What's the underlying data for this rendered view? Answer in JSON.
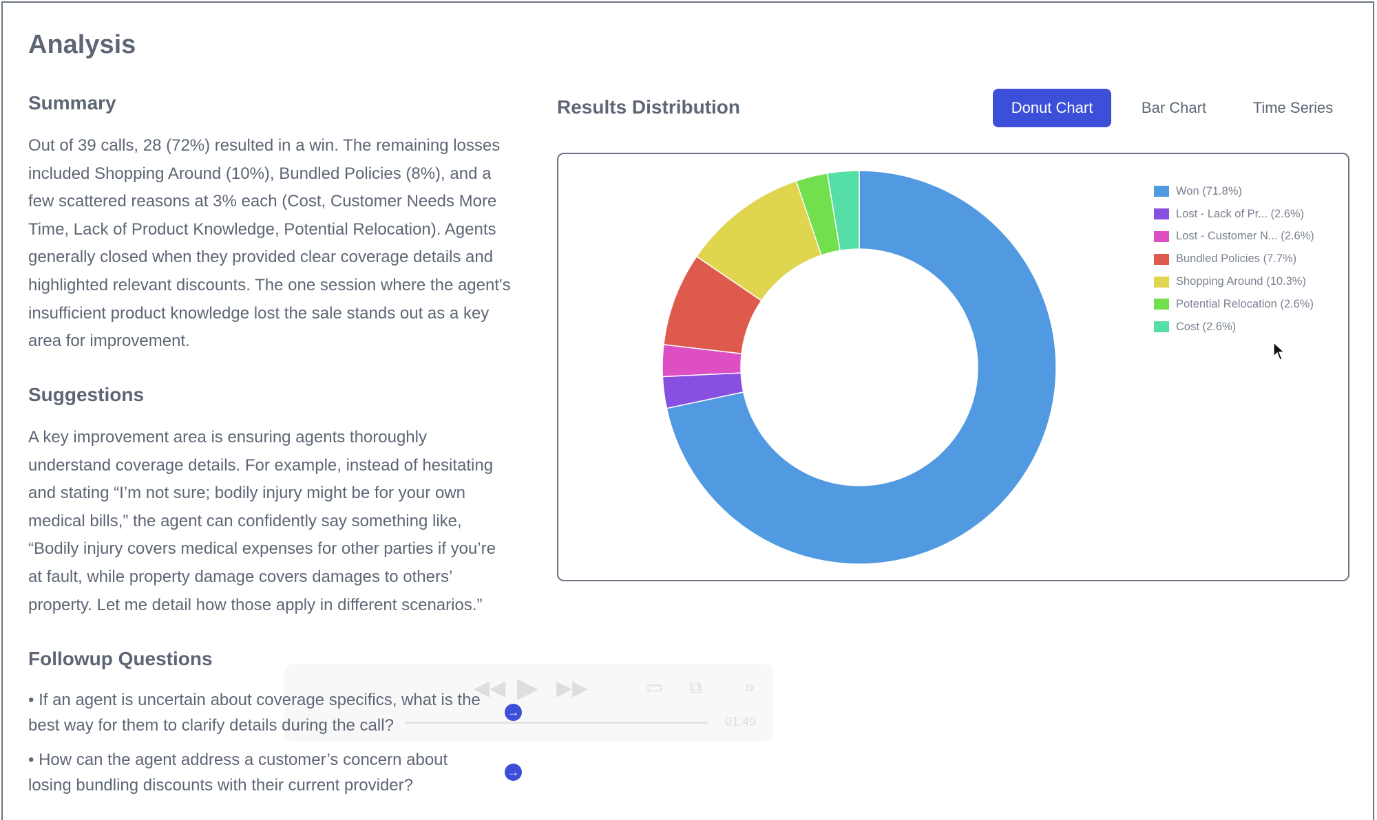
{
  "page": {
    "title": "Analysis"
  },
  "summary": {
    "heading": "Summary",
    "lines": [
      "Out of 39 calls, 28 (72%) resulted in a win. The remaining losses",
      "included Shopping Around (10%), Bundled Policies (8%), and a",
      "few scattered reasons at 3% each (Cost, Customer Needs More",
      "Time, Lack of Product Knowledge, Potential Relocation). Agents",
      "generally closed when they provided clear coverage details and",
      "highlighted relevant discounts. The one session where the agent's",
      "insufficient product knowledge lost the sale stands out as a key",
      "area for improvement."
    ]
  },
  "suggestions": {
    "heading": "Suggestions",
    "lines": [
      "A key improvement area is ensuring agents thoroughly",
      "understand coverage details. For example, instead of hesitating",
      "and stating “I’m not sure; bodily injury might be for your own",
      "medical bills,” the agent can confidently say something like,",
      "“Bodily injury covers medical expenses for other parties if you’re",
      "at fault, while property damage covers damages to others’",
      "property. Let me detail how those apply in different scenarios.”"
    ]
  },
  "followup": {
    "heading": "Followup Questions",
    "items": [
      {
        "line1": "• If an agent is uncertain about coverage specifics, what is the",
        "line2": "best way for them to clarify details during the call?"
      },
      {
        "line1": "• How can the agent address a customer’s concern about",
        "line2": "losing bundling discounts with their current provider?"
      }
    ]
  },
  "video_overlay": {
    "time": "01:49",
    "icons": [
      "rewind-icon",
      "play-icon",
      "fast-forward-icon",
      "airplay-icon",
      "picture-in-picture-icon",
      "chevron-right-icon"
    ]
  },
  "chart_header": {
    "title": "Results Distribution",
    "tabs": [
      {
        "label": "Donut Chart",
        "active": true
      },
      {
        "label": "Bar Chart",
        "active": false
      },
      {
        "label": "Time Series",
        "active": false
      }
    ]
  },
  "chart_data": {
    "type": "pie",
    "title": "Results Distribution",
    "subtype": "donut",
    "legend_position": "top-right",
    "slices": [
      {
        "label": "Won (71.8%)",
        "value": 71.8,
        "color": "#5199e0"
      },
      {
        "label": "Lost - Lack of Pr... (2.6%)",
        "value": 2.6,
        "color": "#8750e0"
      },
      {
        "label": "Lost - Customer N... (2.6%)",
        "value": 2.6,
        "color": "#de4fc4"
      },
      {
        "label": "Bundled Policies (7.7%)",
        "value": 7.7,
        "color": "#de5a4c"
      },
      {
        "label": "Shopping Around (10.3%)",
        "value": 10.3,
        "color": "#dfd54f"
      },
      {
        "label": "Potential Relocation (2.6%)",
        "value": 2.6,
        "color": "#72df4f"
      },
      {
        "label": "Cost (2.6%)",
        "value": 2.6,
        "color": "#55dfa6"
      }
    ]
  },
  "colors": {
    "accent": "#3b4fd8",
    "text": "#5d6675"
  }
}
